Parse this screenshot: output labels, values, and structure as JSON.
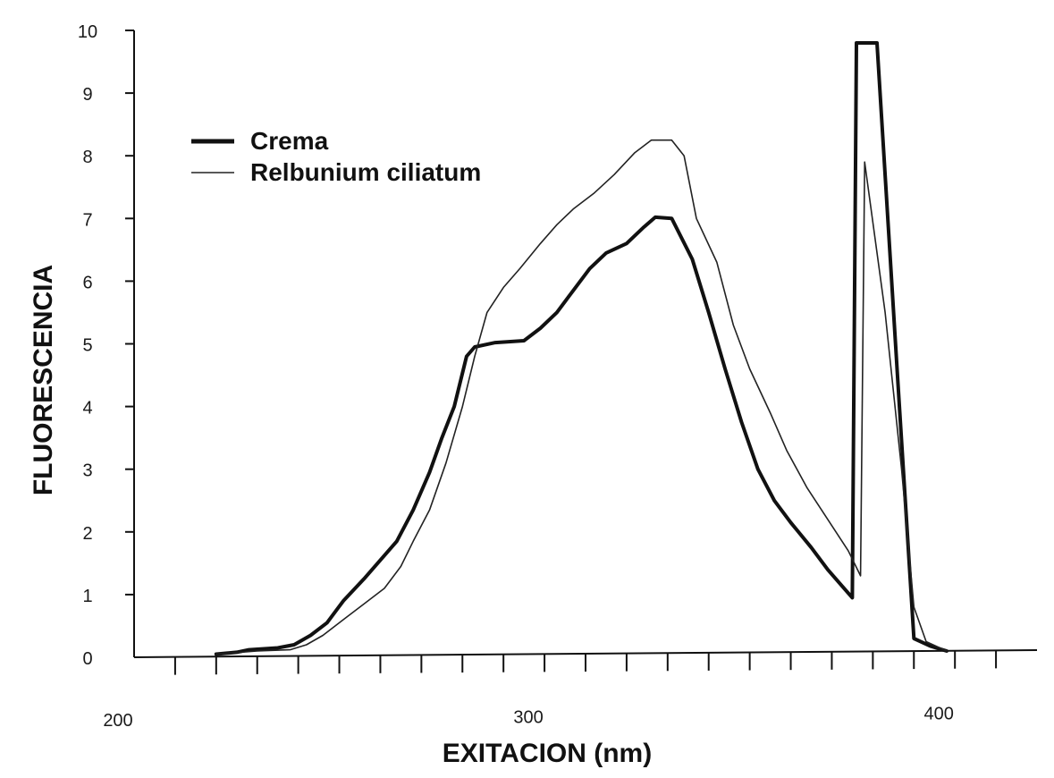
{
  "chart_data": {
    "type": "line",
    "xlabel": "EXITACION (nm)",
    "ylabel": "FLUORESCENCIA",
    "xlim": [
      200,
      420
    ],
    "ylim": [
      0,
      10
    ],
    "x_tick_labels": [
      "200",
      "300",
      "400"
    ],
    "y_tick_labels": [
      "0",
      "1",
      "2",
      "3",
      "4",
      "5",
      "6",
      "7",
      "8",
      "9",
      "10"
    ],
    "grid": false,
    "legend_position": "top-left",
    "series": [
      {
        "name": "Crema",
        "color": "#111111",
        "style": "thick",
        "points": [
          [
            220,
            0.05
          ],
          [
            225,
            0.08
          ],
          [
            228,
            0.12
          ],
          [
            235,
            0.15
          ],
          [
            239,
            0.2
          ],
          [
            243,
            0.35
          ],
          [
            247,
            0.55
          ],
          [
            251,
            0.9
          ],
          [
            256,
            1.25
          ],
          [
            260,
            1.55
          ],
          [
            264,
            1.85
          ],
          [
            268,
            2.35
          ],
          [
            272,
            2.95
          ],
          [
            275,
            3.5
          ],
          [
            278,
            4.0
          ],
          [
            281,
            4.8
          ],
          [
            283,
            4.95
          ],
          [
            288,
            5.02
          ],
          [
            295,
            5.05
          ],
          [
            299,
            5.25
          ],
          [
            303,
            5.5
          ],
          [
            307,
            5.85
          ],
          [
            311,
            6.2
          ],
          [
            315,
            6.45
          ],
          [
            320,
            6.6
          ],
          [
            324,
            6.85
          ],
          [
            327,
            7.02
          ],
          [
            331,
            7.0
          ],
          [
            336,
            6.35
          ],
          [
            340,
            5.5
          ],
          [
            344,
            4.6
          ],
          [
            348,
            3.75
          ],
          [
            352,
            3.0
          ],
          [
            356,
            2.5
          ],
          [
            360,
            2.15
          ],
          [
            365,
            1.75
          ],
          [
            369,
            1.4
          ],
          [
            373,
            1.1
          ],
          [
            375,
            0.95
          ],
          [
            376,
            9.8
          ],
          [
            381,
            9.8
          ],
          [
            386,
            4.5
          ],
          [
            390,
            0.3
          ],
          [
            394,
            0.18
          ],
          [
            398,
            0.1
          ]
        ]
      },
      {
        "name": "Relbunium ciliatum",
        "color": "#222222",
        "style": "thin",
        "points": [
          [
            220,
            0.05
          ],
          [
            230,
            0.1
          ],
          [
            238,
            0.12
          ],
          [
            242,
            0.2
          ],
          [
            246,
            0.35
          ],
          [
            251,
            0.6
          ],
          [
            256,
            0.85
          ],
          [
            261,
            1.1
          ],
          [
            265,
            1.45
          ],
          [
            268,
            1.85
          ],
          [
            272,
            2.35
          ],
          [
            276,
            3.1
          ],
          [
            280,
            4.0
          ],
          [
            283,
            4.8
          ],
          [
            286,
            5.5
          ],
          [
            290,
            5.9
          ],
          [
            294,
            6.2
          ],
          [
            299,
            6.6
          ],
          [
            303,
            6.9
          ],
          [
            307,
            7.15
          ],
          [
            312,
            7.4
          ],
          [
            317,
            7.7
          ],
          [
            322,
            8.05
          ],
          [
            326,
            8.25
          ],
          [
            331,
            8.25
          ],
          [
            334,
            8.0
          ],
          [
            337,
            7.0
          ],
          [
            342,
            6.3
          ],
          [
            346,
            5.3
          ],
          [
            350,
            4.6
          ],
          [
            355,
            3.9
          ],
          [
            359,
            3.3
          ],
          [
            364,
            2.7
          ],
          [
            369,
            2.2
          ],
          [
            374,
            1.7
          ],
          [
            377,
            1.3
          ],
          [
            378,
            7.9
          ],
          [
            383,
            5.5
          ],
          [
            387,
            3.0
          ],
          [
            390,
            0.8
          ],
          [
            393,
            0.25
          ],
          [
            398,
            0.1
          ]
        ]
      }
    ]
  }
}
